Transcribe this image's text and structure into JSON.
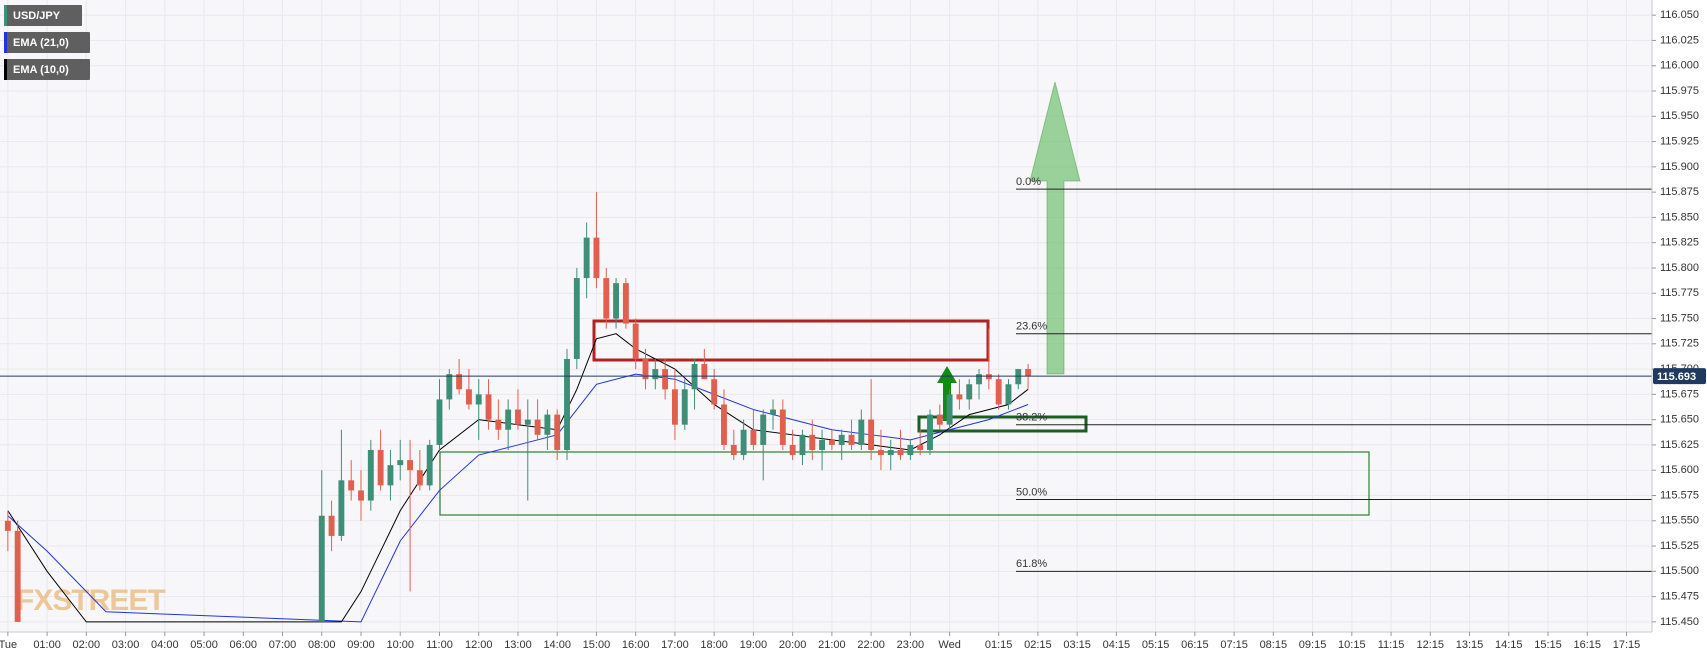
{
  "chart_data": {
    "type": "candlestick",
    "watermark": "FXSTREET",
    "current_price": 115.693,
    "current_price_color": "#1f3a60",
    "grid": true,
    "xlim": [
      -0.2,
      41.9
    ],
    "ylim": [
      115.44,
      116.065
    ],
    "yticks": [
      {
        "value": 115.45,
        "label": "115.450"
      },
      115.475,
      {
        "value": 115.5,
        "label": "115.500"
      },
      115.525,
      {
        "value": 115.55,
        "label": "115.550"
      },
      115.575,
      {
        "value": 115.6,
        "label": "115.600"
      },
      115.625,
      {
        "value": 115.65,
        "label": "115.650"
      },
      115.675,
      {
        "value": 115.7,
        "label": "115.700"
      },
      115.725,
      {
        "value": 115.75,
        "label": "115.750"
      },
      115.775,
      {
        "value": 115.8,
        "label": "115.800"
      },
      115.825,
      {
        "value": 115.85,
        "label": "115.850"
      },
      115.875,
      {
        "value": 115.9,
        "label": "115.900"
      },
      115.925,
      {
        "value": 115.95,
        "label": "115.950"
      },
      115.975,
      {
        "value": 116.0,
        "label": "116.000"
      },
      116.025,
      {
        "value": 116.05,
        "label": "116.050"
      }
    ],
    "xticks": [
      {
        "value": 0,
        "label": "Tue"
      },
      {
        "value": 1,
        "label": "01:00"
      },
      {
        "value": 2,
        "label": "02:00"
      },
      {
        "value": 3,
        "label": "03:00"
      },
      {
        "value": 4,
        "label": "04:00"
      },
      {
        "value": 5,
        "label": "05:00"
      },
      {
        "value": 6,
        "label": "06:00"
      },
      {
        "value": 7,
        "label": "07:00"
      },
      {
        "value": 8,
        "label": "08:00"
      },
      {
        "value": 9,
        "label": "09:00"
      },
      {
        "value": 10,
        "label": "10:00"
      },
      {
        "value": 11,
        "label": "11:00"
      },
      {
        "value": 12,
        "label": "12:00"
      },
      {
        "value": 13,
        "label": "13:00"
      },
      {
        "value": 14,
        "label": "14:00"
      },
      {
        "value": 15,
        "label": "15:00"
      },
      {
        "value": 16,
        "label": "16:00"
      },
      {
        "value": 17,
        "label": "17:00"
      },
      {
        "value": 18,
        "label": "18:00"
      },
      {
        "value": 19,
        "label": "19:00"
      },
      {
        "value": 20,
        "label": "20:00"
      },
      {
        "value": 21,
        "label": "21:00"
      },
      {
        "value": 22,
        "label": "22:00"
      },
      {
        "value": 23,
        "label": "23:00"
      },
      {
        "value": 24,
        "label": "Wed"
      },
      {
        "value": 25.25,
        "label": "01:15"
      },
      {
        "value": 26.25,
        "label": "02:15"
      },
      {
        "value": 27.25,
        "label": "03:15"
      },
      {
        "value": 28.25,
        "label": "04:15"
      },
      {
        "value": 29.25,
        "label": "05:15"
      },
      {
        "value": 30.25,
        "label": "06:15"
      },
      {
        "value": 31.25,
        "label": "07:15"
      },
      {
        "value": 32.25,
        "label": "08:15"
      },
      {
        "value": 33.25,
        "label": "09:15"
      },
      {
        "value": 34.25,
        "label": "10:15"
      },
      {
        "value": 35.25,
        "label": "11:15"
      },
      {
        "value": 36.25,
        "label": "12:15"
      },
      {
        "value": 37.25,
        "label": "13:15"
      },
      {
        "value": 38.25,
        "label": "14:15"
      },
      {
        "value": 39.25,
        "label": "15:15"
      },
      {
        "value": 40.25,
        "label": "16:15"
      },
      {
        "value": 41.25,
        "label": "17:15"
      }
    ],
    "candles": {
      "name": "USD/JPY",
      "color": "#3d8f78",
      "up_color": "#3d8f78",
      "down_color": "#e0604f",
      "x": [
        0,
        0.25,
        8,
        8.25,
        8.5,
        8.75,
        9,
        9.25,
        9.5,
        9.75,
        10,
        10.25,
        10.5,
        10.75,
        11,
        11.25,
        11.5,
        11.75,
        12,
        12.25,
        12.5,
        12.75,
        13,
        13.25,
        13.5,
        13.75,
        14,
        14.25,
        14.5,
        14.75,
        15,
        15.25,
        15.5,
        15.75,
        16,
        16.25,
        16.5,
        16.75,
        17,
        17.25,
        17.5,
        17.75,
        18,
        18.25,
        18.5,
        18.75,
        19,
        19.25,
        19.5,
        19.75,
        20,
        20.25,
        20.5,
        20.75,
        21,
        21.25,
        21.5,
        21.75,
        22,
        22.25,
        22.5,
        22.75,
        23,
        23.25,
        23.5,
        23.75,
        24,
        24.25,
        24.5,
        24.75,
        25,
        25.25,
        25.5,
        25.75,
        26
      ],
      "open": [
        115.55,
        115.54,
        115.45,
        115.555,
        115.535,
        115.59,
        115.58,
        115.57,
        115.62,
        115.585,
        115.605,
        115.61,
        115.6,
        115.585,
        115.625,
        115.67,
        115.695,
        115.68,
        115.665,
        115.675,
        115.65,
        115.64,
        115.66,
        115.645,
        115.65,
        115.635,
        115.655,
        115.62,
        115.71,
        115.79,
        115.83,
        115.79,
        115.75,
        115.785,
        115.745,
        115.71,
        115.69,
        115.7,
        115.68,
        115.645,
        115.68,
        115.705,
        115.69,
        115.665,
        115.625,
        115.615,
        115.64,
        115.625,
        115.655,
        115.66,
        115.625,
        115.615,
        115.635,
        115.62,
        115.63,
        115.625,
        115.635,
        115.625,
        115.65,
        115.62,
        115.615,
        115.62,
        115.615,
        115.625,
        115.62,
        115.655,
        115.645,
        115.675,
        115.67,
        115.685,
        115.695,
        115.69,
        115.665,
        115.685,
        115.7
      ],
      "high": [
        115.56,
        115.55,
        115.6,
        115.57,
        115.64,
        115.61,
        115.6,
        115.63,
        115.64,
        115.62,
        115.63,
        115.63,
        115.62,
        115.63,
        115.69,
        115.7,
        115.71,
        115.7,
        115.69,
        115.69,
        115.67,
        115.67,
        115.68,
        115.67,
        115.67,
        115.66,
        115.66,
        115.72,
        115.8,
        115.845,
        115.875,
        115.8,
        115.79,
        115.79,
        115.75,
        115.72,
        115.71,
        115.71,
        115.7,
        115.69,
        115.71,
        115.72,
        115.7,
        115.68,
        115.64,
        115.65,
        115.66,
        115.66,
        115.67,
        115.67,
        115.64,
        115.64,
        115.65,
        115.64,
        115.64,
        115.64,
        115.65,
        115.66,
        115.69,
        115.64,
        115.63,
        115.64,
        115.63,
        115.64,
        115.66,
        115.665,
        115.68,
        115.69,
        115.69,
        115.7,
        115.74,
        115.695,
        115.69,
        115.7,
        115.705
      ],
      "low": [
        115.52,
        115.45,
        115.45,
        115.52,
        115.53,
        115.57,
        115.55,
        115.56,
        115.58,
        115.57,
        115.59,
        115.48,
        115.58,
        115.58,
        115.62,
        115.66,
        115.675,
        115.66,
        115.63,
        115.64,
        115.63,
        115.62,
        115.64,
        115.57,
        115.63,
        115.62,
        115.61,
        115.61,
        115.7,
        115.77,
        115.78,
        115.74,
        115.74,
        115.74,
        115.7,
        115.68,
        115.68,
        115.67,
        115.63,
        115.64,
        115.66,
        115.69,
        115.66,
        115.62,
        115.61,
        115.61,
        115.62,
        115.59,
        115.64,
        115.62,
        115.61,
        115.605,
        115.61,
        115.6,
        115.62,
        115.61,
        115.62,
        115.62,
        115.61,
        115.6,
        115.6,
        115.61,
        115.61,
        115.615,
        115.615,
        115.64,
        115.64,
        115.66,
        115.66,
        115.67,
        115.68,
        115.66,
        115.66,
        115.68,
        115.68
      ],
      "close": [
        115.54,
        115.45,
        115.555,
        115.535,
        115.59,
        115.58,
        115.57,
        115.62,
        115.585,
        115.605,
        115.61,
        115.6,
        115.585,
        115.625,
        115.67,
        115.695,
        115.68,
        115.665,
        115.675,
        115.65,
        115.64,
        115.66,
        115.645,
        115.65,
        115.635,
        115.655,
        115.62,
        115.71,
        115.79,
        115.83,
        115.79,
        115.75,
        115.785,
        115.745,
        115.71,
        115.69,
        115.7,
        115.68,
        115.645,
        115.68,
        115.705,
        115.69,
        115.665,
        115.625,
        115.615,
        115.64,
        115.625,
        115.655,
        115.66,
        115.625,
        115.615,
        115.635,
        115.62,
        115.63,
        115.625,
        115.635,
        115.625,
        115.65,
        115.62,
        115.615,
        115.62,
        115.615,
        115.625,
        115.62,
        115.655,
        115.645,
        115.675,
        115.67,
        115.685,
        115.695,
        115.69,
        115.665,
        115.685,
        115.7,
        115.693
      ]
    },
    "series": [
      {
        "name": "EMA (21,0)",
        "color": "#2233dd",
        "x": [
          0,
          1,
          2.5,
          9,
          10,
          11,
          12,
          13,
          14,
          15,
          16,
          17,
          18,
          19,
          20,
          21,
          22,
          23,
          24,
          25,
          26
        ],
        "values": [
          115.555,
          115.52,
          115.46,
          115.45,
          115.53,
          115.58,
          115.615,
          115.625,
          115.635,
          115.685,
          115.695,
          115.69,
          115.675,
          115.66,
          115.65,
          115.64,
          115.635,
          115.63,
          115.64,
          115.65,
          115.665
        ]
      },
      {
        "name": "EMA (10,0)",
        "color": "#000000",
        "x": [
          0,
          1,
          2,
          8.5,
          9,
          10,
          11,
          12,
          13,
          14,
          14.5,
          15,
          15.5,
          16,
          17,
          18,
          19,
          20,
          21,
          22,
          23,
          23.75,
          24.5,
          25.5,
          26
        ],
        "values": [
          115.56,
          115.5,
          115.45,
          115.45,
          115.48,
          115.56,
          115.62,
          115.65,
          115.645,
          115.64,
          115.68,
          115.73,
          115.735,
          115.72,
          115.7,
          115.665,
          115.64,
          115.635,
          115.63,
          115.625,
          115.62,
          115.635,
          115.655,
          115.665,
          115.68
        ]
      }
    ],
    "fib_levels": [
      {
        "label": "0.0%",
        "value": 115.878
      },
      {
        "label": "23.6%",
        "value": 115.735
      },
      {
        "label": "38.2%",
        "value": 115.645
      },
      {
        "label": "50.0%",
        "value": 115.571
      },
      {
        "label": "61.8%",
        "value": 115.5
      }
    ]
  }
}
